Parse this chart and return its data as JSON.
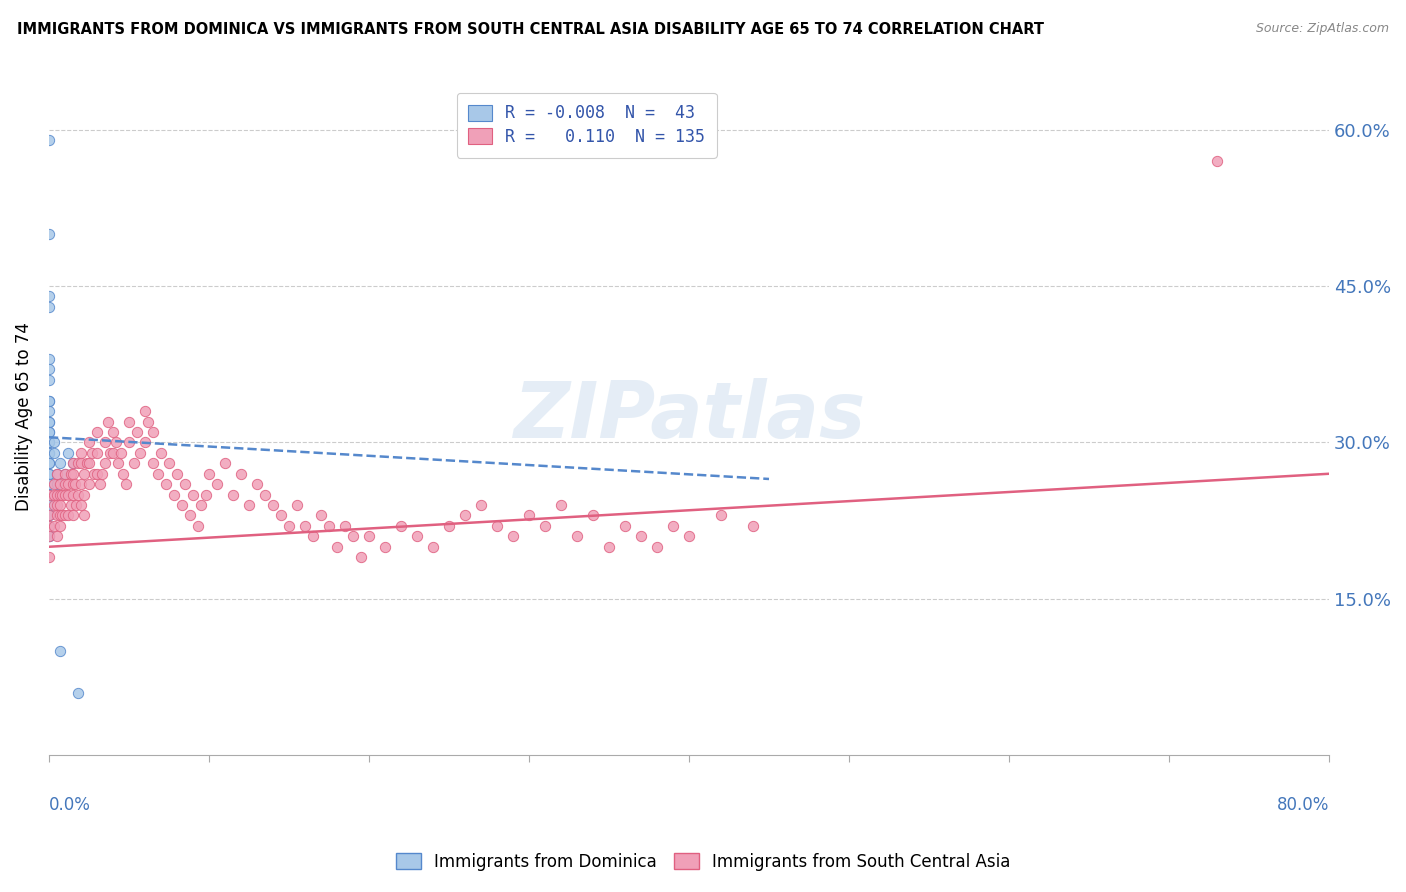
{
  "title": "IMMIGRANTS FROM DOMINICA VS IMMIGRANTS FROM SOUTH CENTRAL ASIA DISABILITY AGE 65 TO 74 CORRELATION CHART",
  "source": "Source: ZipAtlas.com",
  "ylabel": "Disability Age 65 to 74",
  "yaxis_ticks": [
    "15.0%",
    "30.0%",
    "45.0%",
    "60.0%"
  ],
  "yaxis_tick_vals": [
    0.15,
    0.3,
    0.45,
    0.6
  ],
  "xlim": [
    0.0,
    0.8
  ],
  "ylim": [
    0.0,
    0.65
  ],
  "legend_R1": "-0.008",
  "legend_N1": "43",
  "legend_R2": "0.110",
  "legend_N2": "135",
  "color_blue": "#a8c8e8",
  "color_pink": "#f0a0b8",
  "color_blue_edge": "#5588cc",
  "color_pink_edge": "#e06080",
  "color_blue_line": "#5588cc",
  "color_pink_line": "#e06080",
  "blue_trend_x": [
    0.0,
    0.45
  ],
  "blue_trend_y": [
    0.305,
    0.265
  ],
  "pink_trend_x": [
    0.0,
    0.8
  ],
  "pink_trend_y": [
    0.2,
    0.27
  ],
  "blue_scatter_x": [
    0.0,
    0.0,
    0.0,
    0.0,
    0.0,
    0.0,
    0.0,
    0.0,
    0.0,
    0.0,
    0.0,
    0.0,
    0.0,
    0.0,
    0.0,
    0.0,
    0.0,
    0.0,
    0.0,
    0.0,
    0.0,
    0.0,
    0.0,
    0.0,
    0.0,
    0.0,
    0.0,
    0.0,
    0.0,
    0.0,
    0.0,
    0.0,
    0.0,
    0.003,
    0.003,
    0.005,
    0.005,
    0.007,
    0.01,
    0.012,
    0.015,
    0.007,
    0.018
  ],
  "blue_scatter_y": [
    0.59,
    0.5,
    0.44,
    0.43,
    0.38,
    0.37,
    0.36,
    0.34,
    0.34,
    0.33,
    0.32,
    0.32,
    0.31,
    0.31,
    0.3,
    0.3,
    0.29,
    0.29,
    0.28,
    0.28,
    0.27,
    0.27,
    0.26,
    0.26,
    0.25,
    0.25,
    0.24,
    0.24,
    0.23,
    0.23,
    0.22,
    0.21,
    0.21,
    0.3,
    0.29,
    0.27,
    0.26,
    0.28,
    0.27,
    0.29,
    0.28,
    0.1,
    0.06
  ],
  "pink_scatter_x": [
    0.0,
    0.0,
    0.0,
    0.0,
    0.0,
    0.003,
    0.003,
    0.003,
    0.003,
    0.005,
    0.005,
    0.005,
    0.005,
    0.005,
    0.007,
    0.007,
    0.007,
    0.007,
    0.007,
    0.008,
    0.008,
    0.01,
    0.01,
    0.01,
    0.01,
    0.012,
    0.012,
    0.012,
    0.014,
    0.014,
    0.015,
    0.015,
    0.015,
    0.015,
    0.015,
    0.016,
    0.017,
    0.018,
    0.018,
    0.02,
    0.02,
    0.02,
    0.02,
    0.022,
    0.022,
    0.022,
    0.024,
    0.025,
    0.025,
    0.025,
    0.027,
    0.028,
    0.03,
    0.03,
    0.03,
    0.032,
    0.033,
    0.035,
    0.035,
    0.037,
    0.038,
    0.04,
    0.04,
    0.042,
    0.043,
    0.045,
    0.046,
    0.048,
    0.05,
    0.05,
    0.053,
    0.055,
    0.057,
    0.06,
    0.06,
    0.062,
    0.065,
    0.065,
    0.068,
    0.07,
    0.073,
    0.075,
    0.078,
    0.08,
    0.083,
    0.085,
    0.088,
    0.09,
    0.093,
    0.095,
    0.098,
    0.1,
    0.105,
    0.11,
    0.115,
    0.12,
    0.125,
    0.13,
    0.135,
    0.14,
    0.145,
    0.15,
    0.155,
    0.16,
    0.165,
    0.17,
    0.175,
    0.18,
    0.185,
    0.19,
    0.195,
    0.2,
    0.21,
    0.22,
    0.23,
    0.24,
    0.25,
    0.26,
    0.27,
    0.28,
    0.29,
    0.3,
    0.31,
    0.32,
    0.33,
    0.34,
    0.35,
    0.36,
    0.37,
    0.38,
    0.39,
    0.4,
    0.42,
    0.44,
    0.73
  ],
  "pink_scatter_y": [
    0.25,
    0.23,
    0.22,
    0.21,
    0.19,
    0.26,
    0.25,
    0.24,
    0.22,
    0.27,
    0.25,
    0.24,
    0.23,
    0.21,
    0.26,
    0.25,
    0.24,
    0.23,
    0.22,
    0.25,
    0.23,
    0.27,
    0.26,
    0.25,
    0.23,
    0.26,
    0.25,
    0.23,
    0.27,
    0.24,
    0.28,
    0.27,
    0.26,
    0.25,
    0.23,
    0.26,
    0.24,
    0.28,
    0.25,
    0.29,
    0.28,
    0.26,
    0.24,
    0.27,
    0.25,
    0.23,
    0.28,
    0.3,
    0.28,
    0.26,
    0.29,
    0.27,
    0.31,
    0.29,
    0.27,
    0.26,
    0.27,
    0.3,
    0.28,
    0.32,
    0.29,
    0.31,
    0.29,
    0.3,
    0.28,
    0.29,
    0.27,
    0.26,
    0.32,
    0.3,
    0.28,
    0.31,
    0.29,
    0.33,
    0.3,
    0.32,
    0.28,
    0.31,
    0.27,
    0.29,
    0.26,
    0.28,
    0.25,
    0.27,
    0.24,
    0.26,
    0.23,
    0.25,
    0.22,
    0.24,
    0.25,
    0.27,
    0.26,
    0.28,
    0.25,
    0.27,
    0.24,
    0.26,
    0.25,
    0.24,
    0.23,
    0.22,
    0.24,
    0.22,
    0.21,
    0.23,
    0.22,
    0.2,
    0.22,
    0.21,
    0.19,
    0.21,
    0.2,
    0.22,
    0.21,
    0.2,
    0.22,
    0.23,
    0.24,
    0.22,
    0.21,
    0.23,
    0.22,
    0.24,
    0.21,
    0.23,
    0.2,
    0.22,
    0.21,
    0.2,
    0.22,
    0.21,
    0.23,
    0.22,
    0.57
  ]
}
